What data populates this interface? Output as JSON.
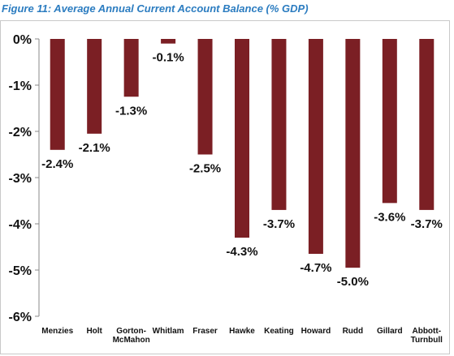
{
  "title": "Figure 11: Average Annual Current Account Balance (% GDP)",
  "colors": {
    "bar": "#7b1f24",
    "title": "#2b7cc0",
    "axis": "#888888"
  },
  "chart_data": {
    "type": "bar",
    "title": "Figure 11: Average Annual Current Account Balance (% GDP)",
    "xlabel": "",
    "ylabel": "",
    "ylim": [
      -6,
      0
    ],
    "yticks": [
      0,
      -1,
      -2,
      -3,
      -4,
      -5,
      -6
    ],
    "ytick_labels": [
      "0%",
      "-1%",
      "-2%",
      "-3%",
      "-4%",
      "-5%",
      "-6%"
    ],
    "grid": false,
    "legend": "none",
    "categories": [
      [
        "Menzies"
      ],
      [
        "Holt"
      ],
      [
        "Gorton-",
        "McMahon"
      ],
      [
        "Whitlam"
      ],
      [
        "Fraser"
      ],
      [
        "Hawke"
      ],
      [
        "Keating"
      ],
      [
        "Howard"
      ],
      [
        "Rudd"
      ],
      [
        "Gillard"
      ],
      [
        "Abbott-",
        "Turnbull"
      ]
    ],
    "values": [
      -2.4,
      -2.05,
      -1.25,
      -0.1,
      -2.5,
      -4.3,
      -3.7,
      -4.65,
      -4.95,
      -3.55,
      -3.7
    ],
    "data_labels": [
      "-2.4%",
      "-2.1%",
      "-1.3%",
      "-0.1%",
      "-2.5%",
      "-4.3%",
      "-3.7%",
      "-4.7%",
      "-5.0%",
      "-3.6%",
      "-3.7%"
    ]
  }
}
